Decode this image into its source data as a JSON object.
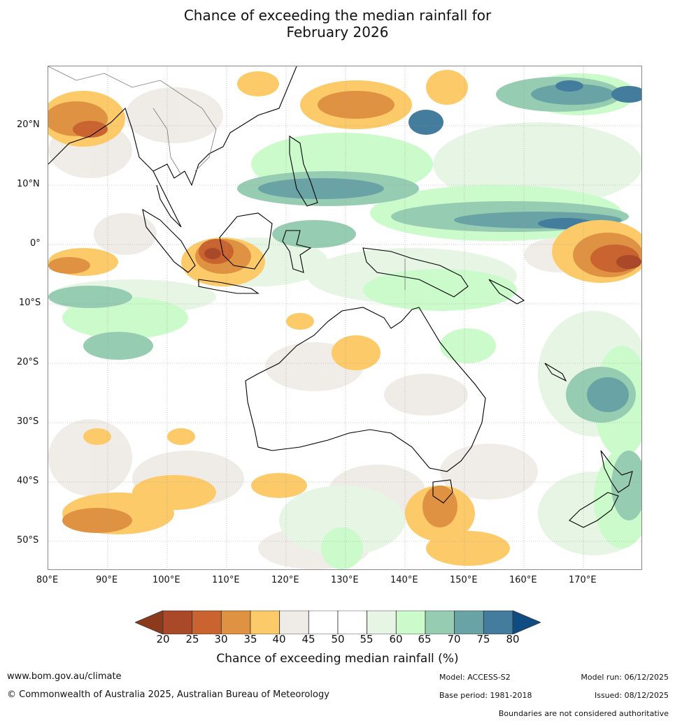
{
  "title_line1": "Chance of exceeding the median rainfall for",
  "title_line2": "February 2026",
  "lon_labels": [
    "80°E",
    "90°E",
    "100°E",
    "110°E",
    "120°E",
    "130°E",
    "140°E",
    "150°E",
    "160°E",
    "170°E"
  ],
  "lat_labels": [
    "20°N",
    "10°N",
    "0°",
    "10°S",
    "20°S",
    "30°S",
    "40°S",
    "50°S"
  ],
  "colorbar": {
    "ticks": [
      "20",
      "25",
      "30",
      "35",
      "40",
      "45",
      "50",
      "55",
      "60",
      "65",
      "70",
      "75",
      "80"
    ],
    "low_color": "#8b3a1c",
    "high_color": "#0f4c81",
    "colors": [
      "#a9492a",
      "#c9632f",
      "#df9342",
      "#fdca6a",
      "#efebe7",
      "#ffffff",
      "#ffffff",
      "#e6f5e4",
      "#cbfbcb",
      "#96ccb2",
      "#6aa3a5",
      "#437c9c"
    ],
    "title": "Chance of exceeding median rainfall (%)"
  },
  "footer": {
    "url": "www.bom.gov.au/climate",
    "copyright": "© Commonwealth of Australia 2025, Australian Bureau of Meteorology",
    "model": "Model: ACCESS-S2",
    "base_period": "Base period: 1981-2018",
    "model_run": "Model run: 06/12/2025",
    "issued": "Issued: 08/12/2025",
    "boundaries": "Boundaries are not considered authoritative"
  }
}
